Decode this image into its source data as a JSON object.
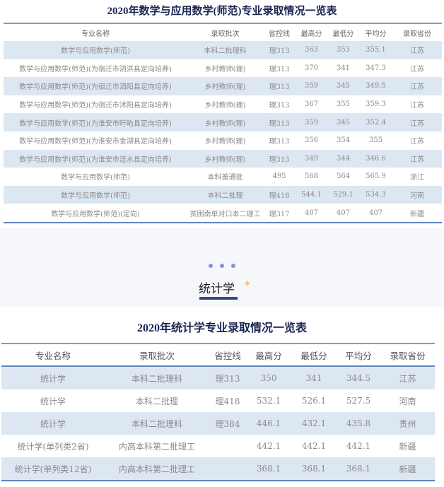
{
  "table1": {
    "title": "2020年数学与应用数学(师范)专业录取情况一览表",
    "headers": [
      "专业名称",
      "录取批次",
      "省控线",
      "最高分",
      "最低分",
      "平均分",
      "录取省份"
    ],
    "rows": [
      [
        "数学与应用数学(师范)",
        "本科二批理科",
        "理313",
        "363",
        "353",
        "355.1",
        "江苏"
      ],
      [
        "数学与应用数学(师范)(为宿迁市泗洪县定向培养)",
        "乡村教师(理)",
        "理313",
        "370",
        "341",
        "347.3",
        "江苏"
      ],
      [
        "数学与应用数学(师范)(为宿迁市泗阳县定向培养)",
        "乡村教师(理)",
        "理313",
        "359",
        "345",
        "349.5",
        "江苏"
      ],
      [
        "数学与应用数学(师范)(为宿迁市沭阳县定向培养)",
        "乡村教师(理)",
        "理313",
        "367",
        "355",
        "359.3",
        "江苏"
      ],
      [
        "数学与应用数学(师范)(为淮安市盱眙县定向培养)",
        "乡村教师(理)",
        "理313",
        "359",
        "345",
        "352.4",
        "江苏"
      ],
      [
        "数学与应用数学(师范)(为淮安市金湖县定向培养)",
        "乡村教师(理)",
        "理313",
        "356",
        "354",
        "355",
        "江苏"
      ],
      [
        "数学与应用数学(师范)(为淮安市涟水县定向培养)",
        "乡村教师(理)",
        "理313",
        "349",
        "344",
        "346.6",
        "江苏"
      ],
      [
        "数学与应用数学(师范)",
        "本科普通批",
        "495",
        "568",
        "564",
        "565.9",
        "浙江"
      ],
      [
        "数学与应用数学(师范)",
        "本科二批理",
        "理418",
        "544.1",
        "529.1",
        "534.3",
        "河南"
      ],
      [
        "数学与应用数学(师范)(定向)",
        "贫困南单对口本二理工",
        "理317",
        "407",
        "407",
        "407",
        "新疆"
      ]
    ]
  },
  "section": {
    "title": "统计学",
    "icons": [
      "dots-icon",
      "sparkle-icon"
    ]
  },
  "table2": {
    "title": "2020年统计学专业录取情况一览表",
    "headers": [
      "专业名称",
      "录取批次",
      "省控线",
      "最高分",
      "最低分",
      "平均分",
      "录取省份"
    ],
    "rows": [
      [
        "统计学",
        "本科二批理科",
        "理313",
        "350",
        "341",
        "344.5",
        "江苏"
      ],
      [
        "统计学",
        "本科二批理",
        "理418",
        "532.1",
        "526.1",
        "527.5",
        "河南"
      ],
      [
        "统计学",
        "本科二批理科",
        "理384",
        "446.1",
        "432.1",
        "435.8",
        "贵州"
      ],
      [
        "统计学(单列类2省)",
        "内高本科第二批理工",
        "",
        "442.1",
        "442.1",
        "442.1",
        "新疆"
      ],
      [
        "统计学(单列类12省)",
        "内高本科第二批理工",
        "",
        "368.1",
        "368.1",
        "368.1",
        "新疆"
      ]
    ]
  },
  "colors": {
    "stripe": "#dde7f2",
    "border": "#5f86bb",
    "title": "#1b2550",
    "accent": "#2d4a7c",
    "star": "#f2c94c",
    "dots": "#8a8fdc"
  }
}
